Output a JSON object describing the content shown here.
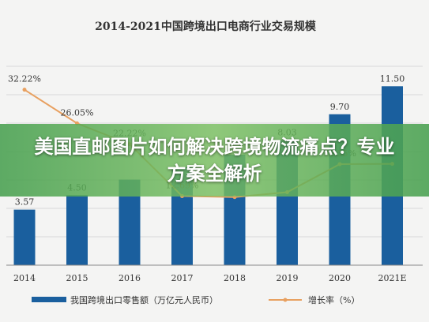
{
  "banner": {
    "headline": "美国直邮图片如何解决跨境物流痛点？专业方案全解析"
  },
  "chart_data": {
    "type": "bar",
    "title": "2014-2021中国跨境出口电商行业交易规模",
    "categories": [
      "2014",
      "2015",
      "2016",
      "2017",
      "2018",
      "2019",
      "2020",
      "2021E"
    ],
    "series": [
      {
        "name": "我国跨境出口零售额（万亿元人民币）",
        "type": "bar",
        "color": "#1a5f9e",
        "values": [
          3.57,
          4.5,
          5.5,
          6.3,
          7.1,
          8.03,
          9.7,
          11.5
        ],
        "labels": [
          "3.57",
          "4.50",
          "",
          "",
          "",
          "8.03",
          "9.70",
          "11.50"
        ]
      },
      {
        "name": "增长率（%）",
        "type": "line",
        "color": "#e8a060",
        "values": [
          32.22,
          26.05,
          22.22,
          12.69,
          12.5,
          13.4,
          18.55,
          18.6
        ],
        "labels": [
          "32.22%",
          "26.05%",
          "22.22%",
          "12.69%",
          "",
          "",
          "18.55%",
          ""
        ]
      }
    ],
    "ylim_bar": [
      0,
      14
    ],
    "ylim_line": [
      0,
      40
    ],
    "grid": true,
    "legend": "bottom"
  }
}
